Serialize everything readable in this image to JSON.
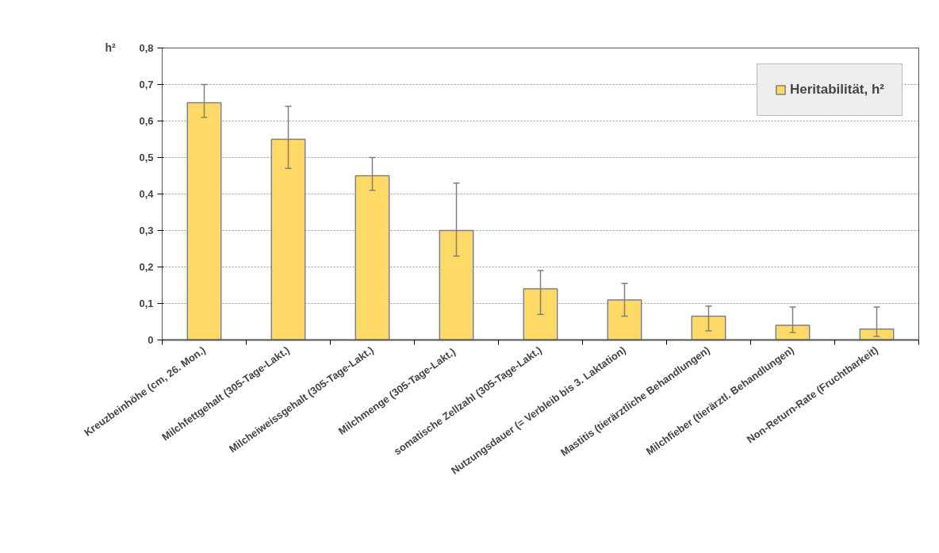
{
  "chart_data": {
    "type": "bar",
    "ylabel": "h²",
    "categories": [
      "Kreuzbeinhöhe (cm, 26. Mon.)",
      "Milchfettgehalt (305-Tage-Lakt.)",
      "Milcheiweissgehalt (305-Tage-Lakt.)",
      "Milchmenge  (305-Tage-Lakt.)",
      "somatische Zellzahl (305-Tage-Lakt.)",
      "Nutzungsdauer (= Verbleib bis 3. Laktation)",
      "Mastitis (tierärztliche Behandlungen)",
      "Milchfieber (tierärztl. Behandlungen)",
      "Non-Return-Rate (Fruchtbarkeit)"
    ],
    "series": [
      {
        "name": "Heritabilität, h²",
        "color": "#ffd966",
        "values": [
          0.65,
          0.55,
          0.45,
          0.3,
          0.14,
          0.11,
          0.065,
          0.04,
          0.03
        ],
        "errors": [
          [
            0.61,
            0.7
          ],
          [
            0.47,
            0.64
          ],
          [
            0.41,
            0.5
          ],
          [
            0.23,
            0.43
          ],
          [
            0.07,
            0.19
          ],
          [
            0.065,
            0.155
          ],
          [
            0.025,
            0.093
          ],
          [
            0.02,
            0.09
          ],
          [
            0.01,
            0.09
          ]
        ]
      }
    ],
    "ylim": [
      0,
      0.8
    ],
    "yticks": [
      {
        "value": 0,
        "label": "0"
      },
      {
        "value": 0.1,
        "label": "0,1"
      },
      {
        "value": 0.2,
        "label": "0,2"
      },
      {
        "value": 0.3,
        "label": "0,3"
      },
      {
        "value": 0.4,
        "label": "0,4"
      },
      {
        "value": 0.5,
        "label": "0,5"
      },
      {
        "value": 0.6,
        "label": "0,6"
      },
      {
        "value": 0.7,
        "label": "0,7"
      },
      {
        "value": 0.8,
        "label": "0,8"
      }
    ],
    "grid": "y",
    "legend": "top right"
  }
}
